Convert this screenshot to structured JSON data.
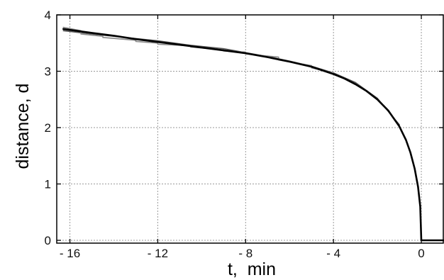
{
  "chart_data": {
    "type": "line",
    "xlabel": "t,  min",
    "ylabel": "distance, d",
    "xlim": [
      -16.6,
      1.0
    ],
    "ylim": [
      -0.05,
      4.0
    ],
    "x_ticks": [
      -16,
      -12,
      -8,
      -4,
      0
    ],
    "x_tick_labels": [
      "- 16",
      "- 12",
      "- 8",
      "- 4",
      "0"
    ],
    "y_ticks": [
      0,
      1,
      2,
      3,
      4
    ],
    "y_tick_labels": [
      "0",
      "1",
      "2",
      "3",
      "4"
    ],
    "grid": true,
    "series": [
      {
        "color": "#000000",
        "x": [
          -16.3,
          -15,
          -14,
          -13,
          -12,
          -11,
          -10,
          -9,
          -8,
          -7,
          -6,
          -5,
          -4,
          -3.5,
          -3,
          -2.5,
          -2,
          -1.5,
          -1,
          -0.7,
          -0.5,
          -0.3,
          -0.15,
          -0.05,
          0,
          1.0
        ],
        "y": [
          3.75,
          3.68,
          3.63,
          3.57,
          3.52,
          3.47,
          3.42,
          3.37,
          3.32,
          3.25,
          3.17,
          3.08,
          2.95,
          2.87,
          2.77,
          2.65,
          2.5,
          2.3,
          2.02,
          1.78,
          1.56,
          1.27,
          0.95,
          0.6,
          0.0,
          0.0
        ]
      },
      {
        "color": "#888888",
        "x": [
          -16.3,
          -15.5,
          -15.5,
          -14.5,
          -14.5,
          -13,
          -13,
          -12,
          -12,
          -10.5,
          -10.5,
          -9,
          -9,
          -8,
          -8,
          -6.5,
          -6.5,
          -5,
          -5,
          -4
        ],
        "y": [
          3.78,
          3.72,
          3.66,
          3.62,
          3.6,
          3.55,
          3.53,
          3.5,
          3.48,
          3.45,
          3.43,
          3.38,
          3.36,
          3.34,
          3.31,
          3.25,
          3.2,
          3.1,
          3.06,
          2.97
        ]
      },
      {
        "color": "#555555",
        "x": [
          -16.3,
          -15,
          -13.5,
          -12,
          -10.5,
          -9,
          -8,
          -7,
          -6,
          -5,
          -4,
          -3,
          -2,
          -1
        ],
        "y": [
          3.72,
          3.66,
          3.6,
          3.54,
          3.46,
          3.4,
          3.33,
          3.26,
          3.18,
          3.09,
          2.97,
          2.8,
          2.52,
          2.05
        ]
      }
    ]
  }
}
